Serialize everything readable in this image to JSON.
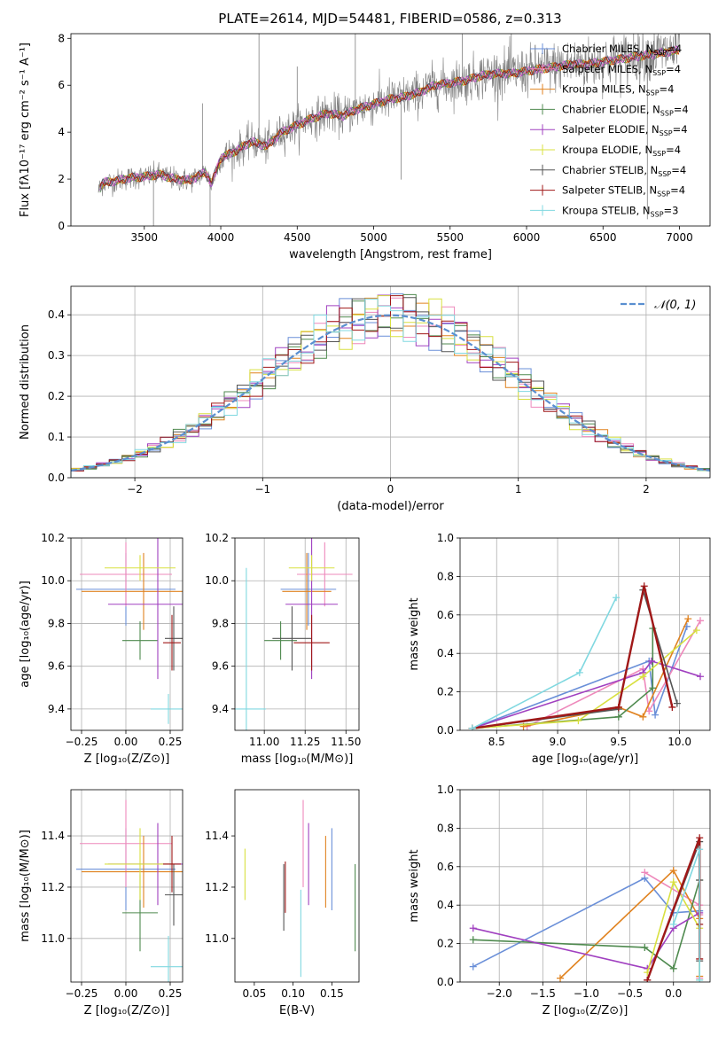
{
  "title": "PLATE=2614, MJD=54481, FIBERID=0586, z=0.313",
  "colors": {
    "Chabrier MILES": "#6a8fd8",
    "Salpeter MILES": "#ee88bb",
    "Kroupa MILES": "#e0821f",
    "Chabrier ELODIE": "#4f8a4f",
    "Salpeter ELODIE": "#a040c0",
    "Kroupa ELODIE": "#d8e040",
    "Chabrier STELIB": "#555555",
    "Salpeter STELIB": "#a01818",
    "Kroupa STELIB": "#80d8e0",
    "gaussian": "#5a8fd0",
    "data": "#808080"
  },
  "chart_data": [
    {
      "id": "spectrum",
      "type": "line",
      "xlabel": "wavelength [Angstrom, rest frame]",
      "ylabel": "Flux [fλ10⁻¹⁷ erg cm⁻² s⁻¹ A⁻¹]",
      "xlim": [
        3020,
        7200
      ],
      "ylim": [
        0,
        8.2
      ],
      "xticks": [
        3500,
        4000,
        4500,
        5000,
        5500,
        6000,
        6500,
        7000
      ],
      "yticks": [
        0,
        2,
        4,
        6,
        8
      ],
      "grid": false,
      "legend_position": "top-right",
      "legend": [
        "Chabrier MILES, N_SSP=4",
        "Salpeter MILES, N_SSP=4",
        "Kroupa MILES, N_SSP=4",
        "Chabrier ELODIE, N_SSP=4",
        "Salpeter ELODIE, N_SSP=4",
        "Kroupa ELODIE, N_SSP=4",
        "Chabrier STELIB, N_SSP=4",
        "Salpeter STELIB, N_SSP=4",
        "Kroupa STELIB, N_SSP=3"
      ],
      "x_range": [
        3200,
        7000
      ],
      "continuum": [
        [
          3200,
          1.5
        ],
        [
          3230,
          1.85
        ],
        [
          3300,
          1.9
        ],
        [
          3400,
          2.05
        ],
        [
          3500,
          2.1
        ],
        [
          3600,
          2.2
        ],
        [
          3700,
          2.0
        ],
        [
          3800,
          1.95
        ],
        [
          3900,
          2.3
        ],
        [
          3940,
          1.8
        ],
        [
          4000,
          2.9
        ],
        [
          4100,
          3.2
        ],
        [
          4200,
          3.6
        ],
        [
          4300,
          3.4
        ],
        [
          4400,
          4.0
        ],
        [
          4500,
          4.3
        ],
        [
          4600,
          4.6
        ],
        [
          4700,
          4.8
        ],
        [
          4800,
          4.7
        ],
        [
          4900,
          5.0
        ],
        [
          5000,
          5.2
        ],
        [
          5100,
          5.4
        ],
        [
          5200,
          5.5
        ],
        [
          5300,
          5.7
        ],
        [
          5400,
          6.0
        ],
        [
          5500,
          6.1
        ],
        [
          5600,
          6.2
        ],
        [
          5700,
          6.4
        ],
        [
          5800,
          6.5
        ],
        [
          5900,
          6.5
        ],
        [
          6000,
          6.6
        ],
        [
          6100,
          6.7
        ],
        [
          6200,
          6.8
        ],
        [
          6300,
          6.9
        ],
        [
          6400,
          6.9
        ],
        [
          6500,
          7.0
        ],
        [
          6600,
          7.1
        ],
        [
          6700,
          7.2
        ],
        [
          6800,
          7.3
        ],
        [
          6900,
          7.4
        ],
        [
          7000,
          7.5
        ]
      ]
    },
    {
      "id": "residuals",
      "type": "line",
      "xlabel": "(data-model)/error",
      "ylabel": "Normed distribution",
      "xlim": [
        -2.5,
        2.5
      ],
      "ylim": [
        0,
        0.47
      ],
      "xticks": [
        -2,
        -1,
        0,
        1,
        2
      ],
      "yticks": [
        0.0,
        0.1,
        0.2,
        0.3,
        0.4
      ],
      "grid": true,
      "legend_position": "top-right",
      "legend": [
        "𝒩(0, 1)"
      ],
      "bin_width": 0.1
    },
    {
      "id": "age-vs-Z",
      "type": "scatter",
      "xlabel": "Z [log₁₀(Z/Z⊙)]",
      "ylabel": "age  [log₁₀(age/yr)]",
      "xlim": [
        -0.31,
        0.32
      ],
      "ylim": [
        9.3,
        10.2
      ],
      "xticks": [
        -0.25,
        0.0,
        0.25
      ],
      "yticks": [
        9.4,
        9.6,
        9.8,
        10.0,
        10.2
      ],
      "grid": true,
      "points": [
        {
          "series": "Chabrier MILES",
          "x": 0.0,
          "y": 9.96,
          "xerr": 0.28,
          "yerr": 0.17
        },
        {
          "series": "Salpeter MILES",
          "x": 0.0,
          "y": 10.03,
          "xerr": 0.26,
          "yerr": 0.15
        },
        {
          "series": "Kroupa MILES",
          "x": 0.1,
          "y": 9.95,
          "xerr": 0.35,
          "yerr": 0.18
        },
        {
          "series": "Chabrier ELODIE",
          "x": 0.08,
          "y": 9.72,
          "xerr": 0.1,
          "yerr": 0.09
        },
        {
          "series": "Salpeter ELODIE",
          "x": 0.18,
          "y": 9.89,
          "xerr": 0.28,
          "yerr": 0.35
        },
        {
          "series": "Kroupa ELODIE",
          "x": 0.08,
          "y": 10.06,
          "xerr": 0.2,
          "yerr": 0.06
        },
        {
          "series": "Chabrier STELIB",
          "x": 0.27,
          "y": 9.73,
          "xerr": 0.05,
          "yerr": 0.15
        },
        {
          "series": "Salpeter STELIB",
          "x": 0.26,
          "y": 9.71,
          "xerr": 0.05,
          "yerr": 0.13
        },
        {
          "series": "Kroupa STELIB",
          "x": 0.24,
          "y": 9.4,
          "xerr": 0.1,
          "yerr": 0.07
        }
      ]
    },
    {
      "id": "age-vs-mass",
      "type": "scatter",
      "xlabel": "mass [log₁₀(M/M⊙)]",
      "ylabel": "",
      "xlim": [
        10.82,
        11.58
      ],
      "ylim": [
        9.3,
        10.2
      ],
      "xticks": [
        11.0,
        11.25,
        11.5
      ],
      "yticks": [
        9.4,
        9.6,
        9.8,
        10.0,
        10.2
      ],
      "grid": true,
      "points": [
        {
          "series": "Chabrier MILES",
          "x": 11.27,
          "y": 9.96,
          "xerr": 0.17,
          "yerr": 0.17
        },
        {
          "series": "Salpeter MILES",
          "x": 11.37,
          "y": 10.03,
          "xerr": 0.17,
          "yerr": 0.15
        },
        {
          "series": "Kroupa MILES",
          "x": 11.26,
          "y": 9.95,
          "xerr": 0.15,
          "yerr": 0.18
        },
        {
          "series": "Chabrier ELODIE",
          "x": 11.1,
          "y": 9.72,
          "xerr": 0.1,
          "yerr": 0.09
        },
        {
          "series": "Salpeter ELODIE",
          "x": 11.29,
          "y": 9.89,
          "xerr": 0.16,
          "yerr": 0.35
        },
        {
          "series": "Kroupa ELODIE",
          "x": 11.29,
          "y": 10.06,
          "xerr": 0.14,
          "yerr": 0.06
        },
        {
          "series": "Chabrier STELIB",
          "x": 11.17,
          "y": 9.73,
          "xerr": 0.12,
          "yerr": 0.15
        },
        {
          "series": "Salpeter STELIB",
          "x": 11.29,
          "y": 9.71,
          "xerr": 0.11,
          "yerr": 0.13
        },
        {
          "series": "Kroupa STELIB",
          "x": 10.89,
          "y": 9.4,
          "xerr": 0.12,
          "yerr": 0.66
        }
      ]
    },
    {
      "id": "massweight-vs-age",
      "type": "line",
      "xlabel": "age  [log₁₀(age/yr)]",
      "ylabel": "mass weight",
      "xlim": [
        8.2,
        10.25
      ],
      "ylim": [
        0,
        1.0
      ],
      "xticks": [
        8.5,
        9.0,
        9.5,
        10.0
      ],
      "yticks": [
        0.0,
        0.2,
        0.4,
        0.6,
        0.8,
        1.0
      ],
      "grid": true,
      "series": [
        {
          "name": "Chabrier MILES",
          "x": [
            8.3,
            9.75,
            9.8,
            10.06
          ],
          "y": [
            0.01,
            0.36,
            0.08,
            0.54
          ]
        },
        {
          "name": "Salpeter MILES",
          "x": [
            8.75,
            9.7,
            9.75,
            10.17
          ],
          "y": [
            0.02,
            0.32,
            0.1,
            0.57
          ]
        },
        {
          "name": "Kroupa MILES",
          "x": [
            8.72,
            9.5,
            9.7,
            10.07
          ],
          "y": [
            0.02,
            0.12,
            0.07,
            0.58
          ]
        },
        {
          "name": "Chabrier ELODIE",
          "x": [
            8.3,
            9.5,
            9.78,
            9.78
          ],
          "y": [
            0.01,
            0.07,
            0.22,
            0.53
          ]
        },
        {
          "name": "Salpeter ELODIE",
          "x": [
            8.3,
            9.7,
            9.77,
            10.17
          ],
          "y": [
            0.01,
            0.3,
            0.36,
            0.28
          ]
        },
        {
          "name": "Kroupa ELODIE",
          "x": [
            8.3,
            9.17,
            9.7,
            10.14
          ],
          "y": [
            0.01,
            0.05,
            0.28,
            0.52
          ]
        },
        {
          "name": "Chabrier STELIB",
          "x": [
            8.3,
            9.5,
            9.7,
            9.98
          ],
          "y": [
            0.01,
            0.11,
            0.73,
            0.14
          ]
        },
        {
          "name": "Salpeter STELIB",
          "x": [
            8.3,
            9.5,
            9.71,
            9.94
          ],
          "y": [
            0.01,
            0.12,
            0.75,
            0.12
          ]
        },
        {
          "name": "Kroupa STELIB",
          "x": [
            8.3,
            9.18,
            9.48
          ],
          "y": [
            0.01,
            0.3,
            0.69
          ]
        }
      ]
    },
    {
      "id": "mass-vs-Z",
      "type": "scatter",
      "xlabel": "Z [log₁₀(Z/Z⊙)]",
      "ylabel": "mass [log₁₀(M/M⊙)]",
      "xlim": [
        -0.31,
        0.32
      ],
      "ylim": [
        10.83,
        11.58
      ],
      "xticks": [
        -0.25,
        0.0,
        0.25
      ],
      "yticks": [
        11.0,
        11.2,
        11.4
      ],
      "grid": true,
      "points": [
        {
          "series": "Chabrier MILES",
          "x": 0.0,
          "y": 11.27,
          "xerr": 0.28,
          "yerr": 0.16
        },
        {
          "series": "Salpeter MILES",
          "x": 0.0,
          "y": 11.37,
          "xerr": 0.26,
          "yerr": 0.17
        },
        {
          "series": "Kroupa MILES",
          "x": 0.1,
          "y": 11.26,
          "xerr": 0.35,
          "yerr": 0.14
        },
        {
          "series": "Chabrier ELODIE",
          "x": 0.08,
          "y": 11.1,
          "xerr": 0.1,
          "yerr": 0.15
        },
        {
          "series": "Salpeter ELODIE",
          "x": 0.18,
          "y": 11.29,
          "xerr": 0.28,
          "yerr": 0.16
        },
        {
          "series": "Kroupa ELODIE",
          "x": 0.08,
          "y": 11.29,
          "xerr": 0.2,
          "yerr": 0.14
        },
        {
          "series": "Chabrier STELIB",
          "x": 0.27,
          "y": 11.17,
          "xerr": 0.05,
          "yerr": 0.12
        },
        {
          "series": "Salpeter STELIB",
          "x": 0.26,
          "y": 11.29,
          "xerr": 0.05,
          "yerr": 0.11
        },
        {
          "series": "Kroupa STELIB",
          "x": 0.24,
          "y": 10.89,
          "xerr": 0.1,
          "yerr": 0.12
        }
      ]
    },
    {
      "id": "mass-vs-EBV",
      "type": "scatter",
      "xlabel": "E(B-V)",
      "ylabel": "",
      "xlim": [
        0.025,
        0.185
      ],
      "ylim": [
        10.83,
        11.58
      ],
      "xticks": [
        0.05,
        0.1,
        0.15
      ],
      "yticks": [
        11.0,
        11.2,
        11.4
      ],
      "grid": false,
      "points": [
        {
          "series": "Chabrier MILES",
          "x": 0.15,
          "y": 11.27,
          "yerr": 0.16
        },
        {
          "series": "Salpeter MILES",
          "x": 0.113,
          "y": 11.37,
          "yerr": 0.17
        },
        {
          "series": "Kroupa MILES",
          "x": 0.142,
          "y": 11.26,
          "yerr": 0.14
        },
        {
          "series": "Chabrier ELODIE",
          "x": 0.18,
          "y": 11.12,
          "yerr": 0.17
        },
        {
          "series": "Salpeter ELODIE",
          "x": 0.12,
          "y": 11.29,
          "yerr": 0.16
        },
        {
          "series": "Kroupa ELODIE",
          "x": 0.038,
          "y": 11.25,
          "yerr": 0.1
        },
        {
          "series": "Chabrier STELIB",
          "x": 0.088,
          "y": 11.16,
          "yerr": 0.13
        },
        {
          "series": "Salpeter STELIB",
          "x": 0.09,
          "y": 11.2,
          "yerr": 0.1
        },
        {
          "series": "Kroupa STELIB",
          "x": 0.11,
          "y": 11.02,
          "yerr": 0.17
        }
      ]
    },
    {
      "id": "massweight-vs-Z",
      "type": "line",
      "xlabel": "Z [log₁₀(Z/Z⊙)]",
      "ylabel": "mass weight",
      "xlim": [
        -2.45,
        0.42
      ],
      "ylim": [
        0,
        1.0
      ],
      "xticks": [
        -2.0,
        -1.5,
        -1.0,
        -0.5,
        0.0
      ],
      "yticks": [
        0.0,
        0.2,
        0.4,
        0.6,
        0.8,
        1.0
      ],
      "grid": true,
      "series": [
        {
          "name": "Chabrier MILES",
          "x": [
            -2.3,
            -0.33,
            0.0,
            0.3
          ],
          "y": [
            0.08,
            0.54,
            0.36,
            0.37
          ]
        },
        {
          "name": "Salpeter MILES",
          "x": [
            -0.33,
            0.3,
            0.3,
            0.3
          ],
          "y": [
            0.57,
            0.4,
            0.35,
            0.02
          ]
        },
        {
          "name": "Kroupa MILES",
          "x": [
            -1.3,
            0.0,
            0.3,
            0.3
          ],
          "y": [
            0.02,
            0.58,
            0.33,
            0.03
          ]
        },
        {
          "name": "Chabrier ELODIE",
          "x": [
            -2.3,
            -0.33,
            0.0,
            0.3
          ],
          "y": [
            0.22,
            0.18,
            0.07,
            0.53
          ]
        },
        {
          "name": "Salpeter ELODIE",
          "x": [
            -2.3,
            -0.3,
            0.0,
            0.3
          ],
          "y": [
            0.28,
            0.07,
            0.28,
            0.36
          ]
        },
        {
          "name": "Kroupa ELODIE",
          "x": [
            -0.3,
            0.0,
            0.3,
            0.3
          ],
          "y": [
            0.05,
            0.52,
            0.28,
            0.01
          ]
        },
        {
          "name": "Chabrier STELIB",
          "x": [
            -0.3,
            0.3,
            0.3,
            0.3
          ],
          "y": [
            0.01,
            0.73,
            0.53,
            0.11
          ]
        },
        {
          "name": "Salpeter STELIB",
          "x": [
            -0.3,
            0.3,
            0.3,
            0.3
          ],
          "y": [
            0.01,
            0.75,
            0.3,
            0.12
          ]
        },
        {
          "name": "Kroupa STELIB",
          "x": [
            0.0,
            0.3,
            0.3
          ],
          "y": [
            0.3,
            0.69,
            0.01
          ]
        }
      ]
    }
  ]
}
